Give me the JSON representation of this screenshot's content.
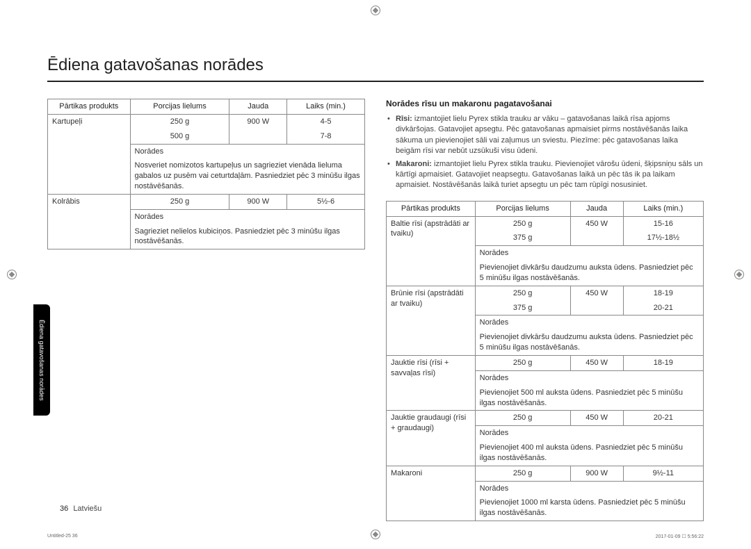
{
  "title": "Ēdiena gatavošanas norādes",
  "sideTab": "Ēdiena gatavošanas norādes",
  "pageNum": "36",
  "lang": "Latviešu",
  "microLeft": "Untitled-25   36",
  "microRight": "2017-01-09   ☐ 5:56:22",
  "leftTable": {
    "headers": [
      "Pārtikas produkts",
      "Porcijas lielums",
      "Jauda",
      "Laiks (min.)"
    ],
    "rows": [
      {
        "product": "Kartupeļi",
        "sizes": [
          "250 g",
          "500 g"
        ],
        "power": "900 W",
        "times": [
          "4-5",
          "7-8"
        ],
        "instrLabel": "Norādes",
        "instr": "Nosveriet nomizotos kartupeļus un sagrieziet vienāda lieluma gabalos uz pusēm vai ceturtdaļām. Pasniedziet pēc 3 minūšu ilgas nostāvēšanās."
      },
      {
        "product": "Kolrābis",
        "sizes": [
          "250 g"
        ],
        "power": "900 W",
        "times": [
          "5½-6"
        ],
        "instrLabel": "Norādes",
        "instr": "Sagrieziet nelielos kubiciņos. Pasniedziet pēc 3 minūšu ilgas nostāvēšanās."
      }
    ]
  },
  "right": {
    "heading": "Norādes rīsu un makaronu pagatavošanai",
    "bullets": [
      {
        "b": "Rīsi:",
        "t": " izmantojiet lielu Pyrex stikla trauku ar vāku – gatavošanas laikā rīsa apjoms divkāršojas. Gatavojiet apsegtu. Pēc gatavošanas apmaisiet pirms nostāvēšanās laika sākuma un pievienojiet sāli vai zaļumus un sviestu. Piezīme: pēc gatavošanas laika beigām rīsi var nebūt uzsūkuši visu ūdeni."
      },
      {
        "b": "Makaroni:",
        "t": " izmantojiet lielu Pyrex stikla trauku. Pievienojiet vārošu ūdeni, šķipsniņu sāls un kārtīgi apmaisiet. Gatavojiet neapsegtu. Gatavošanas laikā un pēc tās ik pa laikam apmaisiet. Nostāvēšanās laikā turiet apsegtu un pēc tam rūpīgi nosusiniet."
      }
    ],
    "table": {
      "headers": [
        "Pārtikas produkts",
        "Porcijas lielums",
        "Jauda",
        "Laiks (min.)"
      ],
      "rows": [
        {
          "product": "Baltie rīsi (apstrādāti ar tvaiku)",
          "sizes": [
            "250 g",
            "375 g"
          ],
          "power": "450 W",
          "times": [
            "15-16",
            "17½-18½"
          ],
          "instrLabel": "Norādes",
          "instr": "Pievienojiet divkāršu daudzumu auksta ūdens. Pasniedziet pēc 5 minūšu ilgas nostāvēšanās."
        },
        {
          "product": "Brūnie rīsi (apstrādāti ar tvaiku)",
          "sizes": [
            "250 g",
            "375 g"
          ],
          "power": "450 W",
          "times": [
            "18-19",
            "20-21"
          ],
          "instrLabel": "Norādes",
          "instr": "Pievienojiet divkāršu daudzumu auksta ūdens. Pasniedziet pēc 5 minūšu ilgas nostāvēšanās."
        },
        {
          "product": "Jauktie rīsi (rīsi + savvaļas rīsi)",
          "sizes": [
            "250 g"
          ],
          "power": "450 W",
          "times": [
            "18-19"
          ],
          "instrLabel": "Norādes",
          "instr": "Pievienojiet 500 ml auksta ūdens. Pasniedziet pēc 5 minūšu ilgas nostāvēšanās."
        },
        {
          "product": "Jauktie graudaugi (rīsi + graudaugi)",
          "sizes": [
            "250 g"
          ],
          "power": "450 W",
          "times": [
            "20-21"
          ],
          "instrLabel": "Norādes",
          "instr": "Pievienojiet 400 ml auksta ūdens. Pasniedziet pēc 5 minūšu ilgas nostāvēšanās."
        },
        {
          "product": "Makaroni",
          "sizes": [
            "250 g"
          ],
          "power": "900 W",
          "times": [
            "9½-11"
          ],
          "instrLabel": "Norādes",
          "instr": "Pievienojiet 1000 ml karsta ūdens. Pasniedziet pēc 5 minūšu ilgas nostāvēšanās."
        }
      ]
    }
  }
}
